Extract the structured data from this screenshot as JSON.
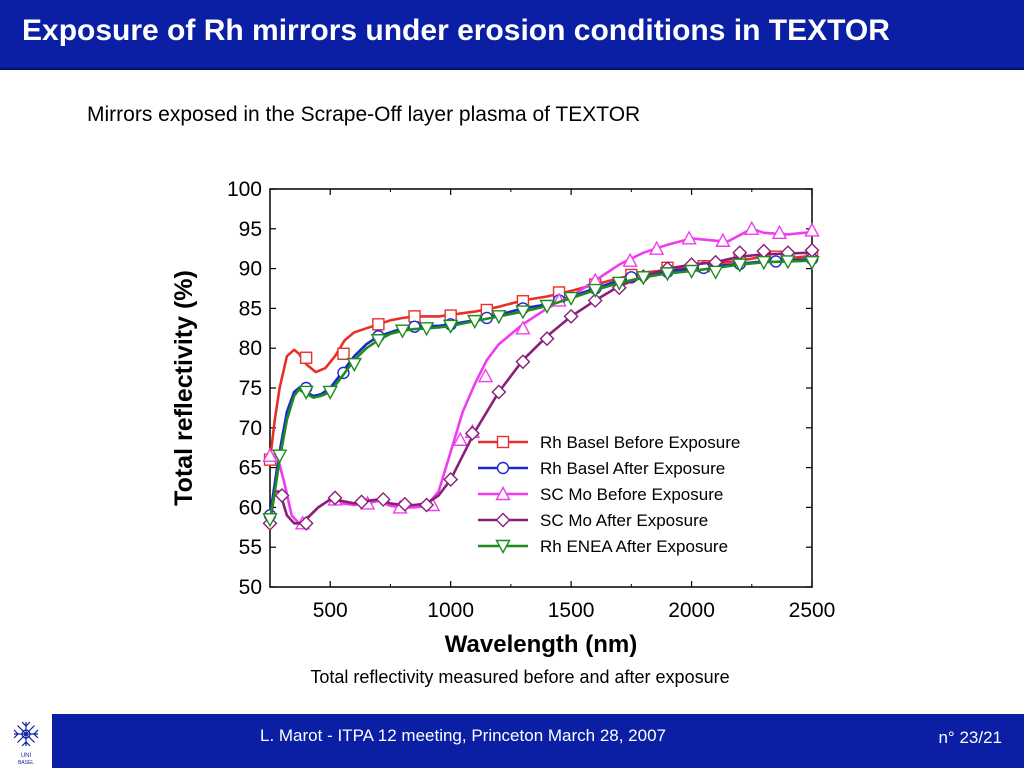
{
  "slide": {
    "title": "Exposure of Rh mirrors under erosion conditions in TEXTOR",
    "subtitle": "Mirrors exposed in the Scrape-Off layer plasma of TEXTOR",
    "caption": "Total reflectivity measured before and after exposure",
    "footer_text": "L. Marot - ITPA 12 meeting, Princeton March 28, 2007",
    "page_number": "n° 23/21",
    "logo_text": "UNI BASEL",
    "colors": {
      "title_bar": "#0a1fa3",
      "footer_bar": "#0a1fa3"
    }
  },
  "chart_data": {
    "type": "line",
    "xlabel": "Wavelength (nm)",
    "ylabel": "Total reflectivity (%)",
    "xlim": [
      250,
      2500
    ],
    "ylim": [
      50,
      100
    ],
    "xticks": [
      500,
      1000,
      1500,
      2000,
      2500
    ],
    "yticks": [
      50,
      55,
      60,
      65,
      70,
      75,
      80,
      85,
      90,
      95,
      100
    ],
    "legend_position": "lower-right inside",
    "series": [
      {
        "name": "Rh Basel Before Exposure",
        "color": "#e8302a",
        "marker": "square",
        "x": [
          250,
          270,
          290,
          320,
          350,
          370,
          400,
          440,
          480,
          520,
          560,
          600,
          650,
          700,
          750,
          800,
          850,
          900,
          950,
          1000,
          1100,
          1200,
          1300,
          1400,
          1500,
          1600,
          1700,
          1800,
          1900,
          2000,
          2100,
          2200,
          2300,
          2400,
          2500
        ],
        "y": [
          66,
          71,
          75,
          79,
          79.8,
          79.3,
          78,
          77,
          77.5,
          79,
          81,
          82,
          82.5,
          83,
          83.5,
          83.8,
          84,
          84,
          84,
          84.2,
          84.6,
          85.2,
          86,
          86.5,
          87.2,
          88,
          88.8,
          89.5,
          89.8,
          90.2,
          90.6,
          91,
          91.5,
          91.3,
          91.6
        ],
        "markers_x": [
          250,
          400,
          555,
          700,
          850,
          1000,
          1150,
          1300,
          1450,
          1600,
          1750,
          1900,
          2050,
          2200,
          2350,
          2500
        ],
        "markers_y": [
          66,
          78.8,
          79.3,
          83,
          84,
          84.1,
          84.8,
          85.9,
          87,
          88,
          89.2,
          90.1,
          90.3,
          91.2,
          91.5,
          91.7
        ]
      },
      {
        "name": "Rh Basel After Exposure",
        "color": "#1a2ad0",
        "marker": "circle",
        "x": [
          250,
          270,
          290,
          320,
          350,
          370,
          400,
          430,
          460,
          500,
          550,
          600,
          650,
          700,
          750,
          800,
          850,
          900,
          950,
          1000,
          1100,
          1200,
          1300,
          1400,
          1500,
          1600,
          1700,
          1800,
          1900,
          2000,
          2100,
          2200,
          2300,
          2400,
          2500
        ],
        "y": [
          59,
          63,
          67,
          72,
          74.5,
          75,
          74.5,
          74,
          74.2,
          75,
          77,
          79,
          80.5,
          81.5,
          82,
          82.5,
          82.7,
          82.8,
          82.8,
          83,
          83.5,
          84.2,
          85,
          85.5,
          86.5,
          87.5,
          88.5,
          89.2,
          89.6,
          90,
          90.3,
          90.6,
          90.9,
          91,
          91.2
        ],
        "markers_x": [
          250,
          400,
          555,
          700,
          850,
          1000,
          1150,
          1300,
          1450,
          1600,
          1750,
          1900,
          2050,
          2200,
          2350,
          2500
        ],
        "markers_y": [
          59,
          75,
          76.9,
          81.5,
          82.7,
          83,
          83.8,
          85,
          86,
          87.5,
          88.9,
          89.6,
          90.1,
          90.6,
          90.9,
          91.2
        ]
      },
      {
        "name": "SC Mo Before Exposure",
        "color": "#f03cf0",
        "marker": "triangle-up",
        "x": [
          250,
          280,
          310,
          340,
          370,
          400,
          450,
          500,
          550,
          600,
          650,
          700,
          750,
          800,
          850,
          900,
          950,
          1000,
          1050,
          1100,
          1150,
          1200,
          1300,
          1400,
          1500,
          1600,
          1700,
          1800,
          1900,
          2000,
          2100,
          2150,
          2200,
          2250,
          2300,
          2400,
          2500
        ],
        "y": [
          66,
          66.5,
          63,
          59,
          58,
          58.5,
          60,
          61,
          60.5,
          60.3,
          60.5,
          60.8,
          60.2,
          60,
          60,
          60.2,
          62,
          67,
          72,
          75.5,
          78.5,
          80.5,
          83,
          85,
          86.5,
          88.5,
          90.5,
          92,
          93,
          93.8,
          93.5,
          93.4,
          94.2,
          95,
          94.5,
          94.3,
          94.6
        ],
        "markers_x": [
          250,
          385,
          520,
          655,
          790,
          925,
          1040,
          1090,
          1145,
          1300,
          1450,
          1600,
          1745,
          1855,
          1990,
          2130,
          2250,
          2365,
          2500
        ],
        "markers_y": [
          66.5,
          58,
          61,
          60.5,
          60,
          60.3,
          68.5,
          69.5,
          76.5,
          82.5,
          86,
          88.5,
          91,
          92.5,
          93.8,
          93.5,
          95,
          94.5,
          94.8
        ]
      },
      {
        "name": "SC Mo After Exposure",
        "color": "#8a1e78",
        "marker": "diamond",
        "x": [
          250,
          270,
          290,
          320,
          350,
          380,
          400,
          450,
          500,
          550,
          600,
          650,
          700,
          750,
          800,
          850,
          900,
          950,
          1000,
          1050,
          1100,
          1200,
          1300,
          1400,
          1500,
          1600,
          1700,
          1800,
          1900,
          2000,
          2100,
          2200,
          2300,
          2400,
          2500
        ],
        "y": [
          58,
          62,
          62,
          59,
          58,
          58,
          58.5,
          60,
          61,
          60.8,
          60.5,
          60.8,
          61,
          60.5,
          60.3,
          60.3,
          60.5,
          61.5,
          63.5,
          66.5,
          69.5,
          74.5,
          78.5,
          81.5,
          84,
          86,
          87.8,
          89,
          90,
          90.5,
          90.8,
          91.5,
          91.8,
          91.9,
          92
        ],
        "markers_x": [
          250,
          300,
          400,
          520,
          630,
          720,
          810,
          900,
          1000,
          1090,
          1200,
          1300,
          1400,
          1500,
          1600,
          1700,
          1800,
          1900,
          2000,
          2100,
          2200,
          2300,
          2400,
          2500
        ],
        "markers_y": [
          58,
          61.5,
          58,
          61.2,
          60.7,
          61,
          60.4,
          60.3,
          63.5,
          69.3,
          74.5,
          78.3,
          81.2,
          84,
          86,
          87.6,
          89,
          90,
          90.5,
          90.8,
          92,
          92.2,
          92,
          92.3
        ]
      },
      {
        "name": "Rh ENEA After Exposure",
        "color": "#1e8c1e",
        "marker": "triangle-down",
        "x": [
          250,
          270,
          290,
          320,
          350,
          370,
          400,
          430,
          460,
          500,
          550,
          600,
          650,
          700,
          750,
          800,
          850,
          900,
          950,
          1000,
          1100,
          1200,
          1300,
          1400,
          1500,
          1600,
          1700,
          1800,
          1900,
          2000,
          2100,
          2200,
          2300,
          2400,
          2500
        ],
        "y": [
          58.5,
          62,
          66,
          71,
          74,
          74.8,
          74.3,
          73.8,
          74,
          74.5,
          76.5,
          78.5,
          80,
          81,
          81.8,
          82.2,
          82.4,
          82.5,
          82.6,
          82.8,
          83.4,
          84,
          84.6,
          85.3,
          86.3,
          87.3,
          88.2,
          88.9,
          89.4,
          89.7,
          90.1,
          90.5,
          90.8,
          90.9,
          91
        ],
        "markers_x": [
          250,
          290,
          400,
          500,
          600,
          700,
          800,
          900,
          1000,
          1100,
          1200,
          1300,
          1400,
          1500,
          1600,
          1700,
          1800,
          1900,
          2000,
          2100,
          2200,
          2300,
          2400,
          2500
        ],
        "markers_y": [
          58.5,
          66.5,
          74.5,
          74.5,
          78,
          81,
          82.2,
          82.5,
          82.8,
          83.4,
          84,
          84.6,
          85.3,
          86.3,
          87.3,
          88.2,
          88.9,
          89.4,
          89.7,
          89.6,
          90.5,
          90.8,
          90.9,
          90.8
        ]
      }
    ]
  }
}
